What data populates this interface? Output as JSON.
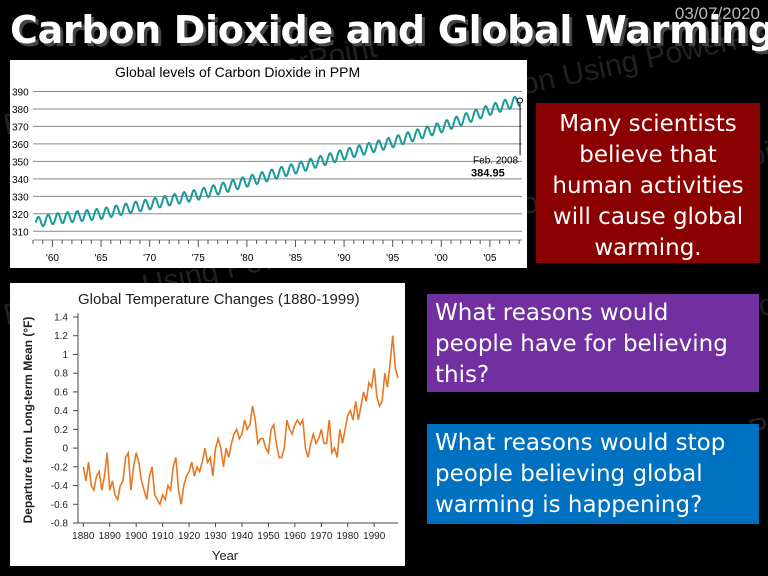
{
  "slide": {
    "title": "Carbon Dioxide and Global Warming",
    "date": "03/07/2020",
    "watermark": "Education Using PowerPoint"
  },
  "boxes": {
    "red": "Many scientists believe that human activities will cause global warming.",
    "purple": "What reasons would people have for believing this?",
    "blue": "What reasons would stop people believing global warming is happening?"
  },
  "chart_data": [
    {
      "type": "line",
      "title": "Global levels of Carbon Dioxide in PPM",
      "xlabel": "",
      "ylabel": "",
      "xlim": [
        1958,
        2008.3
      ],
      "ylim": [
        305,
        392
      ],
      "y_ticks": [
        310,
        320,
        330,
        340,
        350,
        360,
        370,
        380,
        390
      ],
      "x_ticks": [
        1960,
        1965,
        1970,
        1975,
        1980,
        1985,
        1990,
        1995,
        2000,
        2005
      ],
      "x_tick_labels": [
        "'60",
        "'65",
        "'70",
        "'75",
        "'80",
        "'85",
        "'90",
        "'95",
        "'00",
        "'05"
      ],
      "grid": true,
      "color": "#1a9a9a",
      "seasonal_amplitude": 3,
      "series": [
        {
          "x": [
            1958.3,
            1960,
            1965,
            1970,
            1975,
            1980,
            1985,
            1990,
            1995,
            2000,
            2005,
            2008.1
          ],
          "values": [
            315,
            317,
            320,
            325.5,
            331,
            338.5,
            346,
            354,
            361,
            369.5,
            379.5,
            384.95
          ]
        }
      ],
      "annotation": {
        "label": "Feb. 2008",
        "value_label": "384.95",
        "x": 2008.1,
        "y": 384.95
      }
    },
    {
      "type": "line",
      "title": "Global Temperature Changes (1880-1999)",
      "xlabel": "Year",
      "ylabel": "Departure from Long-term Mean (°F)",
      "xlim": [
        1878,
        1999
      ],
      "ylim": [
        -0.8,
        1.4
      ],
      "y_ticks": [
        -0.8,
        -0.6,
        -0.4,
        -0.2,
        0,
        0.2,
        0.4,
        0.6,
        0.8,
        1,
        1.2,
        1.4
      ],
      "y_tick_labels": [
        "-0.8",
        "-0.6",
        "-0.4",
        "-0.2",
        "0",
        "0.2",
        "0.4",
        "0.6",
        "0.8",
        "1",
        "1.2",
        "1.4"
      ],
      "x_ticks": [
        1880,
        1890,
        1900,
        1910,
        1920,
        1930,
        1940,
        1950,
        1960,
        1970,
        1980,
        1990
      ],
      "x_tick_labels": [
        "1880",
        "1890",
        "1900",
        "1910",
        "1920",
        "1930",
        "1940",
        "1950",
        "1960",
        "1970",
        "1980",
        "1990"
      ],
      "grid": false,
      "color": "#e87722",
      "series": [
        {
          "x_start": 1880,
          "values": [
            -0.2,
            -0.35,
            -0.15,
            -0.4,
            -0.45,
            -0.3,
            -0.25,
            -0.45,
            -0.3,
            -0.05,
            -0.45,
            -0.35,
            -0.5,
            -0.55,
            -0.4,
            -0.35,
            -0.1,
            -0.05,
            -0.45,
            -0.2,
            -0.05,
            -0.15,
            -0.35,
            -0.45,
            -0.55,
            -0.3,
            -0.2,
            -0.5,
            -0.55,
            -0.6,
            -0.5,
            -0.55,
            -0.4,
            -0.45,
            -0.2,
            -0.1,
            -0.45,
            -0.6,
            -0.4,
            -0.3,
            -0.25,
            -0.15,
            -0.3,
            -0.2,
            -0.25,
            -0.15,
            0.0,
            -0.15,
            -0.1,
            -0.3,
            0.0,
            0.1,
            0.0,
            -0.2,
            0.0,
            -0.1,
            0.05,
            0.15,
            0.2,
            0.1,
            0.15,
            0.3,
            0.2,
            0.25,
            0.45,
            0.3,
            0.05,
            0.1,
            0.1,
            0.0,
            -0.05,
            0.2,
            0.25,
            0.05,
            -0.1,
            -0.1,
            0.0,
            0.3,
            0.2,
            0.15,
            0.25,
            0.3,
            0.25,
            0.3,
            0.0,
            -0.1,
            0.05,
            0.15,
            0.05,
            0.1,
            0.2,
            0.05,
            0.05,
            0.3,
            -0.05,
            0.0,
            -0.1,
            0.2,
            0.05,
            0.2,
            0.35,
            0.4,
            0.3,
            0.5,
            0.3,
            0.45,
            0.6,
            0.5,
            0.7,
            0.65,
            0.85,
            0.55,
            0.45,
            0.5,
            0.8,
            0.65,
            0.9,
            1.2,
            0.85,
            0.75
          ]
        }
      ]
    }
  ]
}
